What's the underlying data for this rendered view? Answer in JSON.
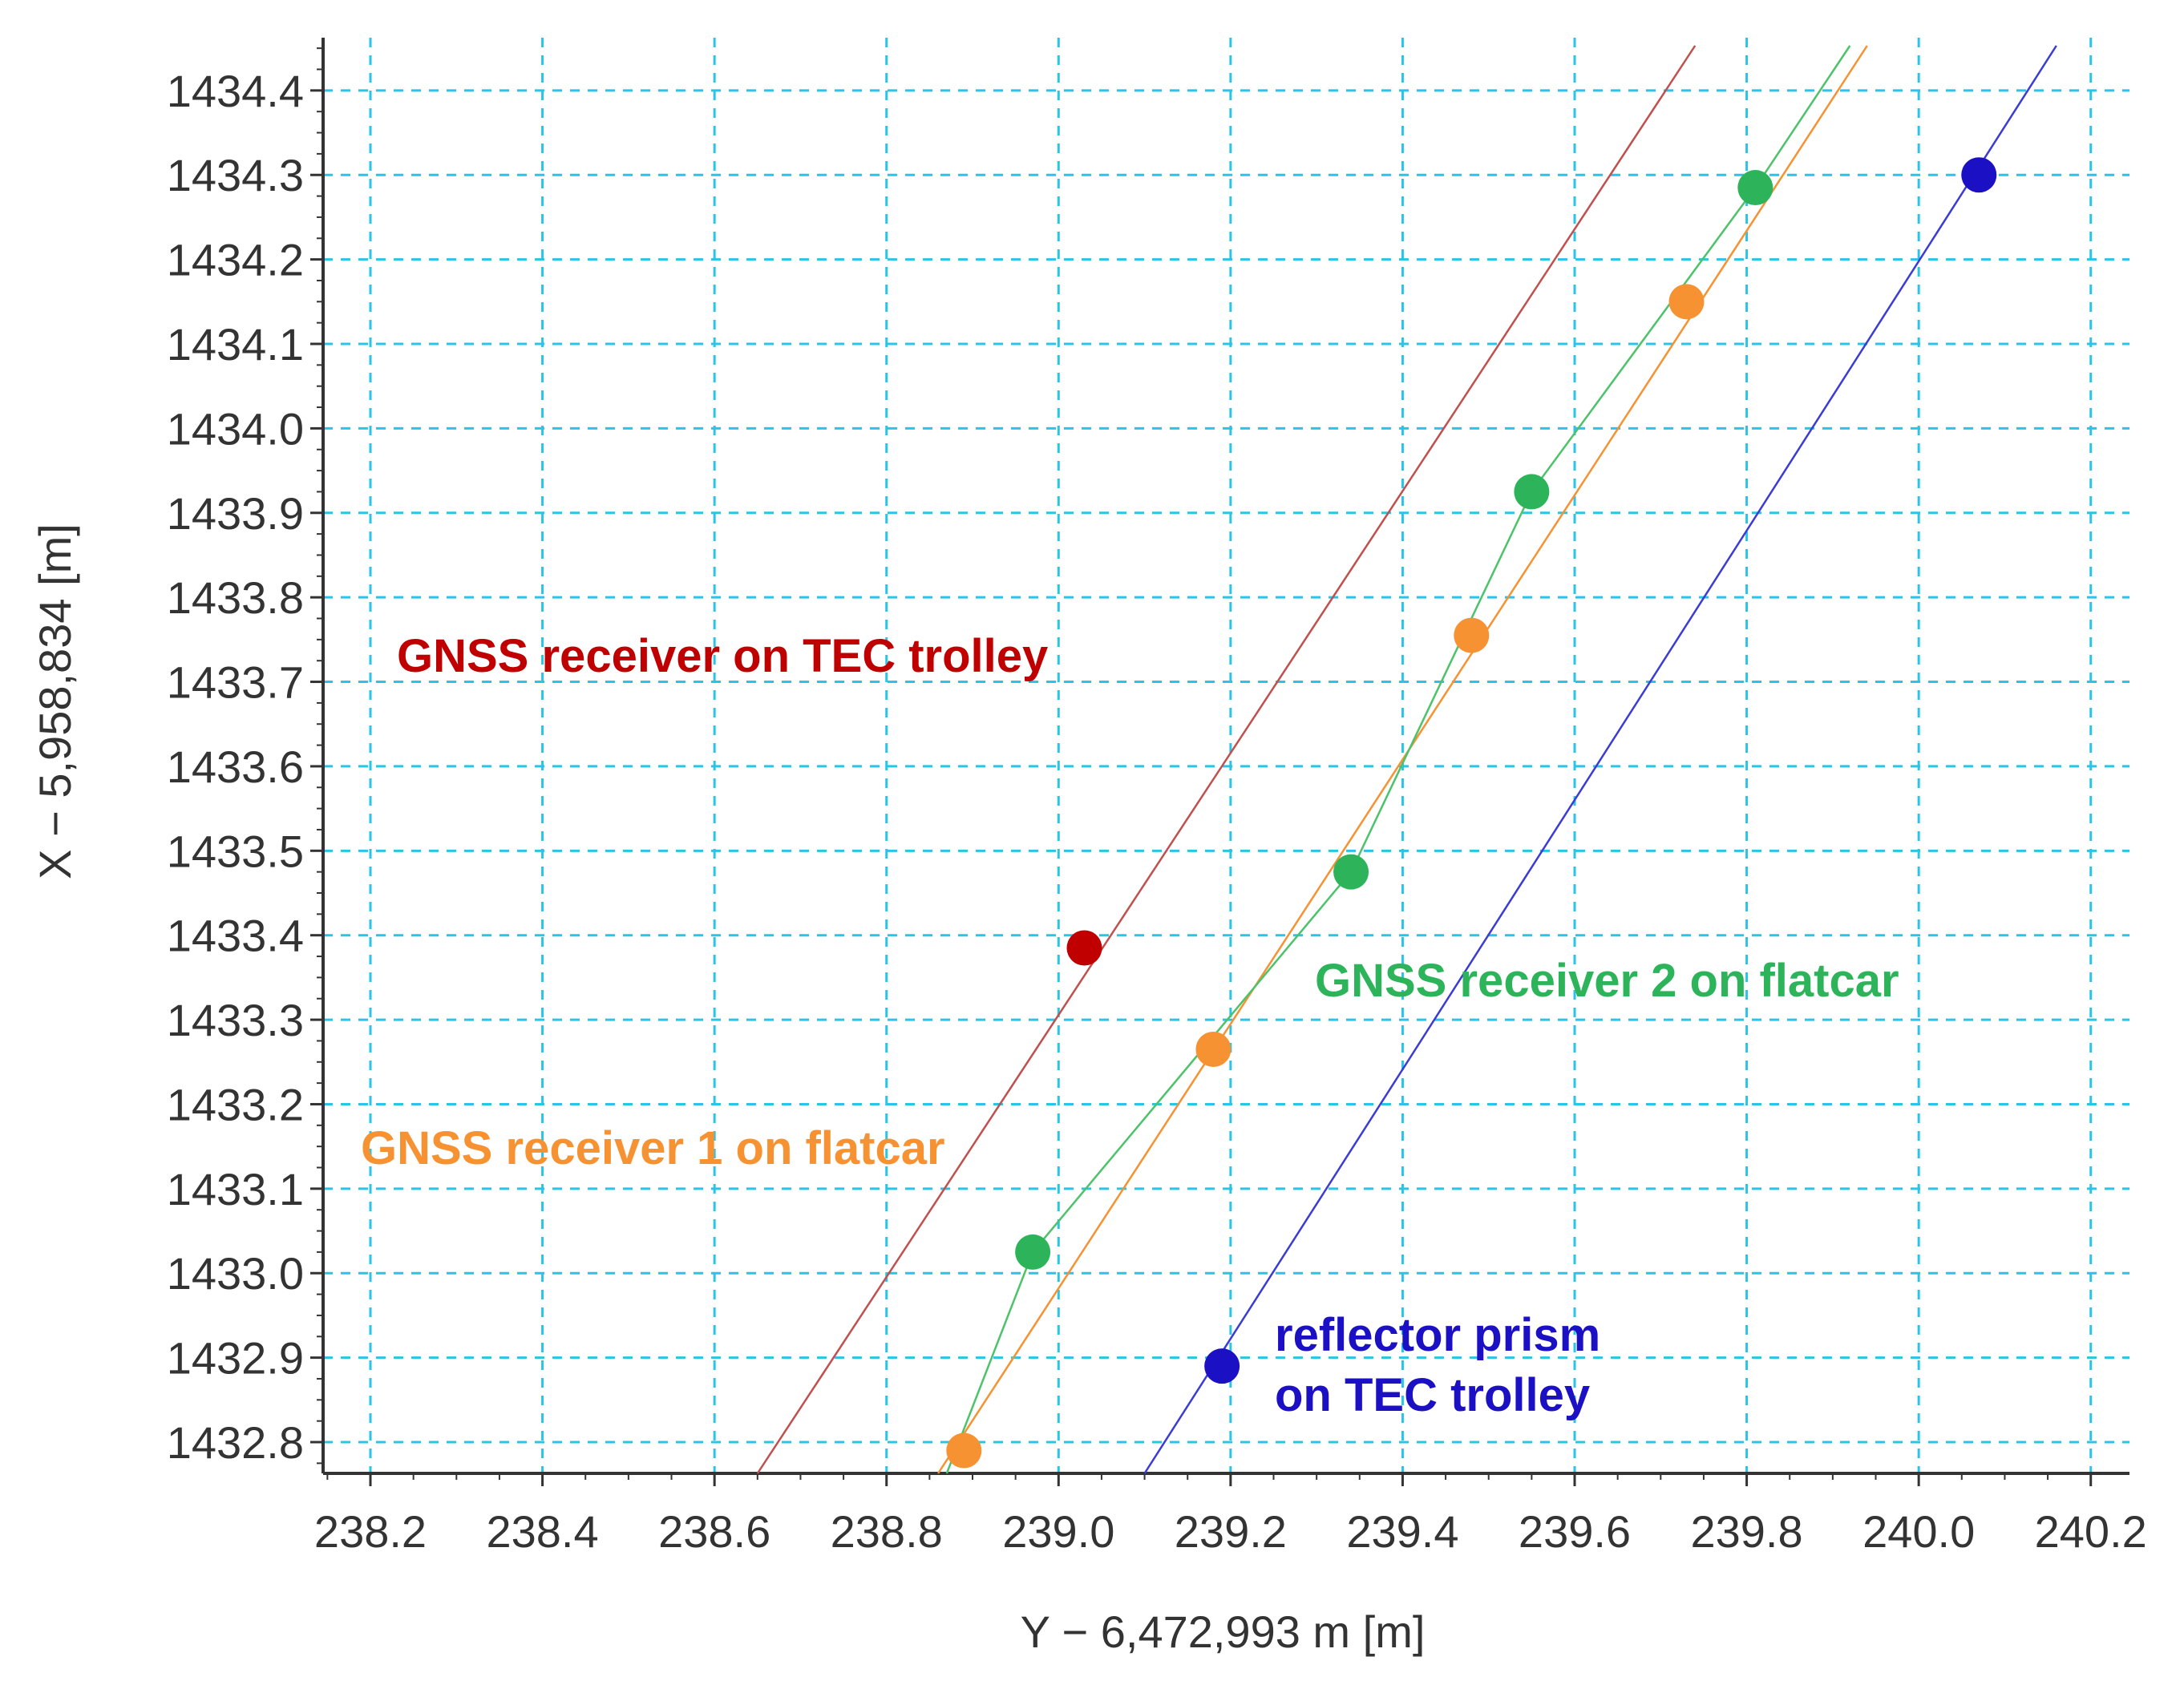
{
  "chart_data": {
    "type": "scatter",
    "title": "",
    "xlabel": "Y − 6,472,993 m [m]",
    "ylabel": "X − 5,958,834 [m]",
    "xlim": [
      238.145,
      240.245
    ],
    "ylim": [
      1432.763,
      1434.453
    ],
    "x_ticks": [
      "238.2",
      "238.4",
      "238.6",
      "238.8",
      "239.0",
      "239.2",
      "239.4",
      "239.6",
      "239.8",
      "240.0",
      "240.2"
    ],
    "y_ticks": [
      "1432.8",
      "1432.9",
      "1433.0",
      "1433.1",
      "1433.2",
      "1433.3",
      "1433.4",
      "1433.5",
      "1433.6",
      "1433.7",
      "1433.8",
      "1433.9",
      "1434.0",
      "1434.1",
      "1434.2",
      "1434.3",
      "1434.4"
    ],
    "grid": true,
    "grid_color": "#29c4e8",
    "series": [
      {
        "name": "GNSS receiver on TEC trolley",
        "color": "#c00000",
        "line_color": "#c0504d",
        "points": [
          {
            "x": 239.03,
            "y": 1433.385
          }
        ],
        "trend_line": [
          {
            "x": 238.65,
            "y": 1432.763
          },
          {
            "x": 239.74,
            "y": 1434.453
          }
        ]
      },
      {
        "name": "GNSS receiver 1 on flatcar",
        "color": "#f79232",
        "line_color": "#f79232",
        "points": [
          {
            "x": 238.89,
            "y": 1432.79
          },
          {
            "x": 239.18,
            "y": 1433.265
          },
          {
            "x": 239.48,
            "y": 1433.755
          },
          {
            "x": 239.73,
            "y": 1434.15
          }
        ],
        "trend_line": [
          {
            "x": 238.86,
            "y": 1432.763
          },
          {
            "x": 239.94,
            "y": 1434.453
          }
        ]
      },
      {
        "name": "GNSS receiver 2 on flatcar",
        "color": "#2db45a",
        "line_color": "#4cc36a",
        "points": [
          {
            "x": 238.97,
            "y": 1433.025
          },
          {
            "x": 239.34,
            "y": 1433.475
          },
          {
            "x": 239.55,
            "y": 1433.925
          },
          {
            "x": 239.81,
            "y": 1434.285
          }
        ],
        "connect_points": true,
        "line_extends": [
          {
            "x": 238.87,
            "y": 1432.763
          },
          {
            "x": 239.92,
            "y": 1434.453
          }
        ]
      },
      {
        "name": "reflector prism on TEC trolley",
        "color": "#1c10c4",
        "line_color": "#3b3bd6",
        "points": [
          {
            "x": 239.19,
            "y": 1432.89
          },
          {
            "x": 240.07,
            "y": 1434.3
          }
        ],
        "trend_line": [
          {
            "x": 239.1,
            "y": 1432.763
          },
          {
            "x": 240.16,
            "y": 1434.453
          }
        ]
      }
    ],
    "annotations": [
      {
        "id": "red",
        "lines": [
          "GNSS receiver on TEC trolley"
        ],
        "color": "#c00000"
      },
      {
        "id": "green",
        "lines": [
          "GNSS receiver 2 on flatcar"
        ],
        "color": "#2db45a"
      },
      {
        "id": "orange",
        "lines": [
          "GNSS receiver 1 on flatcar"
        ],
        "color": "#f79232"
      },
      {
        "id": "blue",
        "lines": [
          "reflector prism",
          "on TEC trolley"
        ],
        "color": "#1c10c4"
      }
    ]
  }
}
